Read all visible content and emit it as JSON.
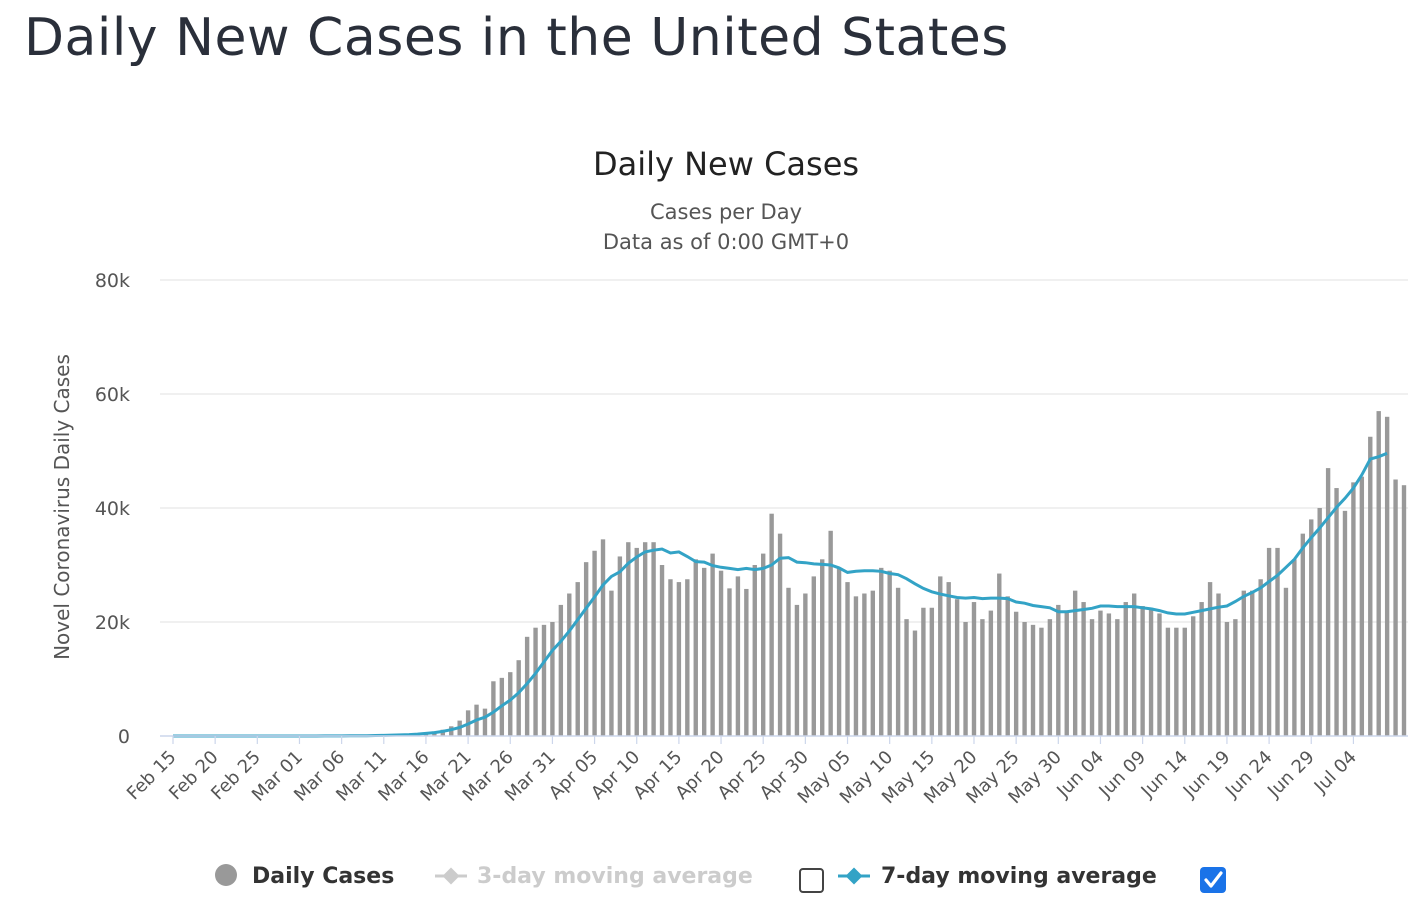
{
  "page": {
    "title": "Daily New Cases in the United States"
  },
  "chart_data": {
    "type": "bar",
    "title": "Daily New Cases",
    "subtitle_1": "Cases per Day",
    "subtitle_2": "Data as of 0:00 GMT+0",
    "ylabel": "Novel Coronavirus Daily Cases",
    "xlabel": "",
    "ylim": [
      0,
      80000
    ],
    "y_ticks": [
      0,
      20000,
      40000,
      60000,
      80000
    ],
    "y_tick_labels": [
      "0",
      "20k",
      "40k",
      "60k",
      "80k"
    ],
    "start_date": "2020-02-15",
    "x_tick_labels": [
      "Feb 15",
      "Feb 20",
      "Feb 25",
      "Mar 01",
      "Mar 06",
      "Mar 11",
      "Mar 16",
      "Mar 21",
      "Mar 26",
      "Mar 31",
      "Apr 05",
      "Apr 10",
      "Apr 15",
      "Apr 20",
      "Apr 25",
      "Apr 30",
      "May 05",
      "May 10",
      "May 15",
      "May 20",
      "May 25",
      "May 30",
      "Jun 04",
      "Jun 09",
      "Jun 14",
      "Jun 19",
      "Jun 24",
      "Jun 29",
      "Jul 04"
    ],
    "grid": true,
    "legend_position": "bottom",
    "colors": {
      "bar": "#999999",
      "ma7": "#33a3c6",
      "ma3": "#cccccc",
      "checkbox": "#1a73e8",
      "grid": "#e6e6e6"
    },
    "series": [
      {
        "name": "Daily Cases",
        "type": "bar",
        "values": [
          0,
          0,
          0,
          0,
          0,
          0,
          0,
          0,
          0,
          0,
          0,
          0,
          0,
          0,
          0,
          0,
          10,
          10,
          20,
          20,
          30,
          50,
          60,
          80,
          100,
          150,
          200,
          250,
          350,
          500,
          600,
          800,
          1100,
          1700,
          2700,
          4500,
          5500,
          4800,
          9600,
          10200,
          11200,
          13300,
          17400,
          19000,
          19500,
          20000,
          23000,
          25000,
          27000,
          30500,
          32500,
          34500,
          25500,
          31500,
          34000,
          33000,
          34000,
          34000,
          30000,
          27500,
          27000,
          27500,
          31000,
          29500,
          32000,
          29000,
          25900,
          28000,
          25800,
          30000,
          32000,
          39000,
          35500,
          26000,
          23000,
          25000,
          28000,
          31000,
          36000,
          29500,
          27000,
          24500,
          25000,
          25500,
          29500,
          29000,
          26000,
          20500,
          18500,
          22500,
          22500,
          28000,
          27000,
          24000,
          20000,
          23500,
          20500,
          22000,
          28500,
          24500,
          21800,
          20000,
          19500,
          19000,
          20500,
          23000,
          22000,
          25500,
          23500,
          20500,
          22000,
          21500,
          20500,
          23500,
          25000,
          22800,
          22500,
          21500,
          19000,
          19000,
          19000,
          21000,
          23500,
          27000,
          25000,
          20000,
          20500,
          25500,
          25500,
          27500,
          33000,
          33000,
          26000,
          31000,
          35500,
          38000,
          40000,
          47000,
          43500,
          39500,
          44500,
          45500,
          52500,
          57000,
          56000,
          45000,
          44000
        ],
        "checked": null
      },
      {
        "name": "3-day moving average",
        "type": "line",
        "visible": false
      },
      {
        "name": "7-day moving average",
        "type": "line",
        "visible": true,
        "values": [
          0,
          0,
          0,
          0,
          0,
          0,
          0,
          0,
          0,
          0,
          0,
          0,
          0,
          0,
          0,
          0,
          0,
          0,
          10,
          10,
          20,
          30,
          40,
          60,
          80,
          110,
          150,
          190,
          250,
          340,
          450,
          600,
          800,
          1100,
          1500,
          2100,
          2800,
          3300,
          4200,
          5300,
          6300,
          7600,
          9200,
          11000,
          13000,
          15000,
          16600,
          18400,
          20400,
          22400,
          24400,
          26500,
          28000,
          28800,
          30300,
          31400,
          32300,
          32600,
          32800,
          32100,
          32300,
          31500,
          30600,
          30500,
          29900,
          29600,
          29400,
          29200,
          29400,
          29200,
          29400,
          30000,
          31200,
          31300,
          30500,
          30400,
          30200,
          30100,
          30000,
          29500,
          28700,
          28900,
          29000,
          29000,
          28900,
          28500,
          28300,
          27600,
          26700,
          25900,
          25300,
          24900,
          24600,
          24300,
          24200,
          24300,
          24100,
          24200,
          24200,
          24100,
          23500,
          23300,
          22900,
          22700,
          22500,
          21800,
          21800,
          22000,
          22200,
          22400,
          22800,
          22800,
          22700,
          22700,
          22700,
          22500,
          22300,
          22000,
          21600,
          21400,
          21400,
          21700,
          22000,
          22300,
          22600,
          22800,
          23600,
          24500,
          25200,
          26000,
          27100,
          28200,
          29600,
          31000,
          33000,
          34800,
          36500,
          38300,
          40100,
          41700,
          43500,
          45800,
          48600,
          49000,
          49600
        ]
      }
    ]
  },
  "legend": {
    "items": [
      {
        "label": "Daily Cases",
        "icon": "gray-circle-icon",
        "active": true
      },
      {
        "label": "3-day moving average",
        "icon": "line-diamond-icon",
        "active": false,
        "checkbox": false
      },
      {
        "label": "7-day moving average",
        "icon": "line-diamond-icon",
        "active": true,
        "checkbox": true
      }
    ]
  }
}
